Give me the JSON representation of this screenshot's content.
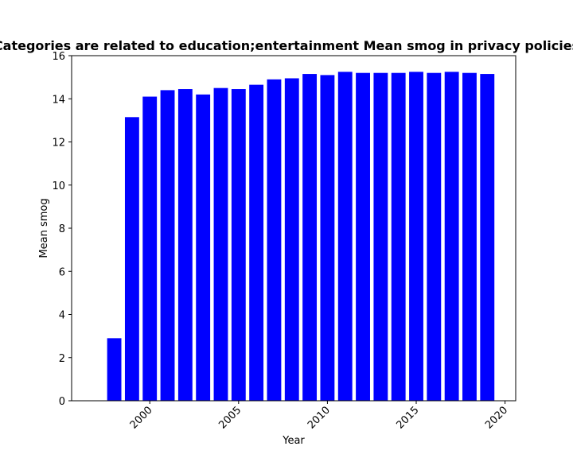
{
  "chart_data": {
    "type": "bar",
    "title": "Categories are related to education;entertainment Mean smog in privacy policies",
    "xlabel": "Year",
    "ylabel": "Mean smog",
    "x": [
      1998,
      1999,
      2000,
      2001,
      2002,
      2003,
      2004,
      2005,
      2006,
      2007,
      2008,
      2009,
      2010,
      2011,
      2012,
      2013,
      2014,
      2015,
      2016,
      2017,
      2018,
      2019
    ],
    "values": [
      2.9,
      13.15,
      14.1,
      14.4,
      14.45,
      14.2,
      14.5,
      14.45,
      14.65,
      14.9,
      14.95,
      15.15,
      15.1,
      15.25,
      15.2,
      15.2,
      15.2,
      15.25,
      15.2,
      15.25,
      15.2,
      15.15
    ],
    "xlim": [
      1995.6,
      2020.6
    ],
    "ylim": [
      0,
      16
    ],
    "xticks": [
      2000,
      2005,
      2010,
      2015,
      2020
    ],
    "xtick_labels": [
      "2000",
      "2005",
      "2010",
      "2015",
      "2020"
    ],
    "yticks": [
      0,
      2,
      4,
      6,
      8,
      10,
      12,
      14,
      16
    ],
    "ytick_labels": [
      "0",
      "2",
      "4",
      "6",
      "8",
      "10",
      "12",
      "14",
      "16"
    ],
    "bar_color": "#0000ff",
    "grid": false,
    "legend": "none"
  }
}
